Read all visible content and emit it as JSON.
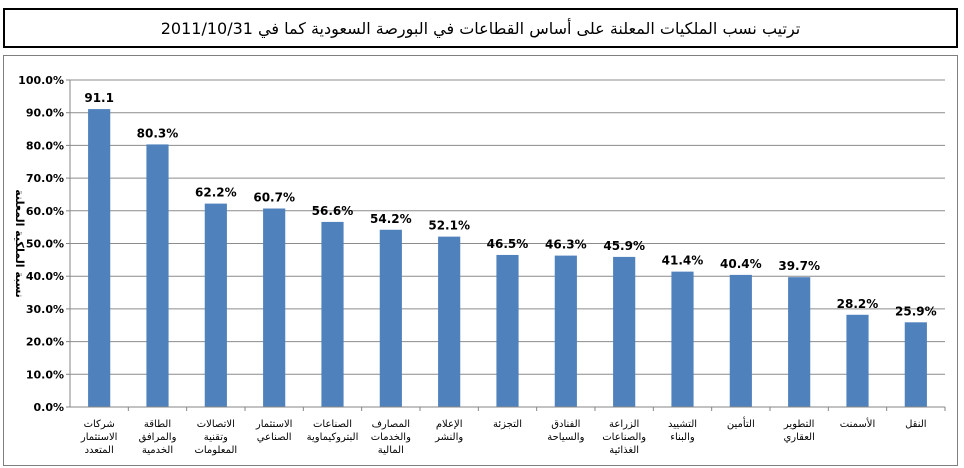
{
  "title": "ترتيب نسب الملكيات المعلنة على أساس القطاعات في البورصة السعودية كما في 2011/10/31",
  "chart_data": {
    "type": "bar",
    "ylabel": "نسبة الملكية المعلنة",
    "ylim": [
      0,
      100
    ],
    "yticks": [
      "0.0%",
      "10.0%",
      "20.0%",
      "30.0%",
      "40.0%",
      "50.0%",
      "60.0%",
      "70.0%",
      "80.0%",
      "90.0%",
      "100.0%"
    ],
    "grid": true,
    "bar_color": "#4f81bd",
    "categories": [
      [
        "شركات",
        "الاستثمار",
        "المتعدد"
      ],
      [
        "الطاقة",
        "والمرافق",
        "الخدمية"
      ],
      [
        "الاتصالات",
        "وتقنية",
        "المعلومات"
      ],
      [
        "الاستثمار",
        "الصناعي"
      ],
      [
        "الصناعات",
        "البتروكيماوية"
      ],
      [
        "المصارف",
        "والخدمات",
        "المالية"
      ],
      [
        "الإعلام",
        "والنشر"
      ],
      [
        "التجزئة"
      ],
      [
        "الفنادق",
        "والسياحة"
      ],
      [
        "الزراعة",
        "والصناعات",
        "الغذائية"
      ],
      [
        "التشييد",
        "والبناء"
      ],
      [
        "التأمين"
      ],
      [
        "التطوير",
        "العقاري"
      ],
      [
        "الأسمنت"
      ],
      [
        "النقل"
      ]
    ],
    "values": [
      91.1,
      80.3,
      62.2,
      60.7,
      56.6,
      54.2,
      52.1,
      46.5,
      46.3,
      45.9,
      41.4,
      40.4,
      39.7,
      28.2,
      25.9
    ],
    "data_labels": [
      "91.1",
      "80.3%",
      "62.2%",
      "60.7%",
      "56.6%",
      "54.2%",
      "52.1%",
      "46.5%",
      "46.3%",
      "45.9%",
      "41.4%",
      "40.4%",
      "39.7%",
      "28.2%",
      "25.9%"
    ]
  }
}
